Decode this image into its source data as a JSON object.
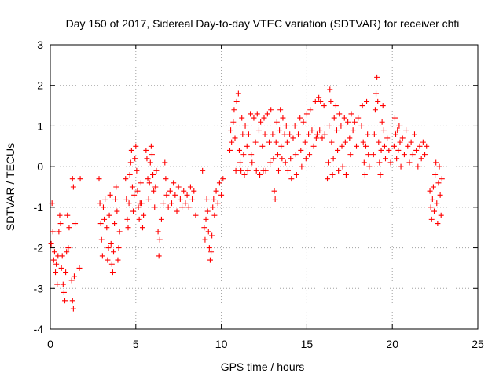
{
  "chart_data": {
    "type": "scatter",
    "title": "Day 150 of 2017, Sidereal Day-to-day VTEC variation (SDTVAR) for receiver chti",
    "xlabel": "GPS time / hours",
    "ylabel": "SDTVAR / TECUs",
    "xlim": [
      0,
      25
    ],
    "ylim": [
      -4,
      3
    ],
    "xticks": [
      "0",
      "5",
      "10",
      "15",
      "20",
      "25"
    ],
    "yticks": [
      "-4",
      "-3",
      "-2",
      "-1",
      "0",
      "1",
      "2",
      "3"
    ],
    "grid": true,
    "marker": "+",
    "color": "#ff0000",
    "series": [
      {
        "name": "SDTVAR",
        "points": [
          [
            0.05,
            -1.9
          ],
          [
            0.1,
            -0.9
          ],
          [
            0.15,
            -1.6
          ],
          [
            0.2,
            -2.3
          ],
          [
            0.25,
            -2.1
          ],
          [
            0.3,
            -2.6
          ],
          [
            0.35,
            -2.4
          ],
          [
            0.4,
            -2.9
          ],
          [
            0.45,
            -2.2
          ],
          [
            0.5,
            -1.6
          ],
          [
            0.55,
            -1.2
          ],
          [
            0.6,
            -1.4
          ],
          [
            0.65,
            -2.5
          ],
          [
            0.7,
            -2.2
          ],
          [
            0.75,
            -2.9
          ],
          [
            0.8,
            -3.1
          ],
          [
            0.85,
            -3.3
          ],
          [
            0.9,
            -2.6
          ],
          [
            0.95,
            -2.1
          ],
          [
            1.0,
            -1.2
          ],
          [
            1.05,
            -2.0
          ],
          [
            1.1,
            -1.5
          ],
          [
            1.25,
            -2.8
          ],
          [
            1.3,
            -3.3
          ],
          [
            1.35,
            -3.5
          ],
          [
            1.4,
            -2.7
          ],
          [
            1.3,
            -0.3
          ],
          [
            1.35,
            -0.5
          ],
          [
            1.45,
            -1.4
          ],
          [
            1.7,
            -2.5
          ],
          [
            1.75,
            -0.3
          ],
          [
            2.85,
            -0.3
          ],
          [
            2.9,
            -0.9
          ],
          [
            2.95,
            -1.4
          ],
          [
            3.0,
            -1.8
          ],
          [
            3.05,
            -2.2
          ],
          [
            3.1,
            -1.0
          ],
          [
            3.15,
            -1.3
          ],
          [
            3.2,
            -0.8
          ],
          [
            3.3,
            -1.5
          ],
          [
            3.35,
            -2.3
          ],
          [
            3.4,
            -2.0
          ],
          [
            3.45,
            -1.2
          ],
          [
            3.5,
            -0.7
          ],
          [
            3.55,
            -1.9
          ],
          [
            3.6,
            -2.4
          ],
          [
            3.65,
            -2.6
          ],
          [
            3.7,
            -2.1
          ],
          [
            3.75,
            -1.4
          ],
          [
            3.8,
            -0.8
          ],
          [
            3.85,
            -0.5
          ],
          [
            3.9,
            -1.1
          ],
          [
            3.95,
            -2.3
          ],
          [
            4.0,
            -2.0
          ],
          [
            4.05,
            -1.6
          ],
          [
            4.4,
            -0.3
          ],
          [
            4.45,
            -0.8
          ],
          [
            4.5,
            -1.3
          ],
          [
            4.55,
            -1.5
          ],
          [
            4.6,
            -0.9
          ],
          [
            4.65,
            -0.2
          ],
          [
            4.7,
            0.1
          ],
          [
            4.75,
            0.4
          ],
          [
            4.8,
            -0.5
          ],
          [
            4.85,
            -1.1
          ],
          [
            4.9,
            -0.7
          ],
          [
            4.95,
            0.2
          ],
          [
            5.0,
            0.5
          ],
          [
            5.05,
            -0.1
          ],
          [
            5.1,
            -0.6
          ],
          [
            5.15,
            -1.0
          ],
          [
            5.2,
            -1.3
          ],
          [
            5.25,
            -0.9
          ],
          [
            5.3,
            -0.4
          ],
          [
            5.35,
            -0.9
          ],
          [
            5.4,
            -1.5
          ],
          [
            5.45,
            -1.2
          ],
          [
            5.6,
            0.4
          ],
          [
            5.65,
            0.2
          ],
          [
            5.7,
            -0.3
          ],
          [
            5.75,
            -0.8
          ],
          [
            5.8,
            -0.4
          ],
          [
            5.85,
            0.1
          ],
          [
            5.9,
            0.5
          ],
          [
            5.95,
            0.3
          ],
          [
            6.0,
            -0.2
          ],
          [
            6.05,
            -0.6
          ],
          [
            6.1,
            -1.0
          ],
          [
            6.15,
            -0.5
          ],
          [
            6.2,
            -0.1
          ],
          [
            6.3,
            -1.6
          ],
          [
            6.35,
            -2.2
          ],
          [
            6.4,
            -1.8
          ],
          [
            6.5,
            -1.3
          ],
          [
            6.6,
            -0.9
          ],
          [
            6.7,
            0.1
          ],
          [
            6.75,
            -0.3
          ],
          [
            6.8,
            -0.7
          ],
          [
            6.9,
            -1.0
          ],
          [
            7.0,
            -0.6
          ],
          [
            7.1,
            -0.9
          ],
          [
            7.2,
            -0.4
          ],
          [
            7.3,
            -0.7
          ],
          [
            7.4,
            -1.1
          ],
          [
            7.5,
            -0.5
          ],
          [
            7.6,
            -0.8
          ],
          [
            7.7,
            -1.0
          ],
          [
            7.8,
            -0.6
          ],
          [
            7.9,
            -0.9
          ],
          [
            8.0,
            -0.7
          ],
          [
            8.1,
            -1.0
          ],
          [
            8.2,
            -0.5
          ],
          [
            8.3,
            -0.8
          ],
          [
            8.4,
            -0.6
          ],
          [
            8.5,
            -1.2
          ],
          [
            8.9,
            -0.1
          ],
          [
            9.0,
            -1.5
          ],
          [
            9.05,
            -1.8
          ],
          [
            9.1,
            -1.3
          ],
          [
            9.15,
            -0.8
          ],
          [
            9.2,
            -1.1
          ],
          [
            9.25,
            -1.6
          ],
          [
            9.3,
            -2.0
          ],
          [
            9.35,
            -2.3
          ],
          [
            9.4,
            -2.1
          ],
          [
            9.45,
            -1.7
          ],
          [
            9.5,
            -1.0
          ],
          [
            9.55,
            -0.8
          ],
          [
            9.6,
            -1.2
          ],
          [
            9.7,
            -0.6
          ],
          [
            9.8,
            -0.9
          ],
          [
            9.9,
            -0.4
          ],
          [
            10.0,
            -0.7
          ],
          [
            10.1,
            -0.3
          ],
          [
            10.5,
            0.4
          ],
          [
            10.55,
            0.9
          ],
          [
            10.6,
            0.6
          ],
          [
            10.7,
            1.1
          ],
          [
            10.75,
            1.4
          ],
          [
            10.8,
            0.7
          ],
          [
            10.85,
            -0.1
          ],
          [
            10.9,
            1.6
          ],
          [
            11.0,
            1.8
          ],
          [
            11.05,
            0.4
          ],
          [
            11.1,
            0.1
          ],
          [
            11.15,
            -0.1
          ],
          [
            11.2,
            1.2
          ],
          [
            11.25,
            0.8
          ],
          [
            11.3,
            0.3
          ],
          [
            11.35,
            -0.2
          ],
          [
            11.4,
            1.0
          ],
          [
            11.5,
            0.5
          ],
          [
            11.55,
            -0.1
          ],
          [
            11.6,
            0.8
          ],
          [
            11.7,
            1.3
          ],
          [
            11.75,
            0.3
          ],
          [
            11.8,
            0.1
          ],
          [
            11.9,
            1.2
          ],
          [
            12.0,
            0.6
          ],
          [
            12.05,
            -0.1
          ],
          [
            12.1,
            1.3
          ],
          [
            12.2,
            0.9
          ],
          [
            12.25,
            -0.2
          ],
          [
            12.3,
            1.1
          ],
          [
            12.4,
            0.5
          ],
          [
            12.45,
            -0.1
          ],
          [
            12.5,
            1.2
          ],
          [
            12.55,
            0.8
          ],
          [
            12.6,
            -0.1
          ],
          [
            12.7,
            1.3
          ],
          [
            12.8,
            0.6
          ],
          [
            12.85,
            0.1
          ],
          [
            12.9,
            1.4
          ],
          [
            13.0,
            0.8
          ],
          [
            13.05,
            0.2
          ],
          [
            13.1,
            -0.6
          ],
          [
            13.15,
            -0.8
          ],
          [
            13.2,
            0.6
          ],
          [
            13.25,
            1.1
          ],
          [
            13.3,
            0.3
          ],
          [
            13.35,
            -0.1
          ],
          [
            13.4,
            0.9
          ],
          [
            13.45,
            1.4
          ],
          [
            13.5,
            0.5
          ],
          [
            13.55,
            0.2
          ],
          [
            13.6,
            1.2
          ],
          [
            13.7,
            0.8
          ],
          [
            13.75,
            0.1
          ],
          [
            13.8,
            1.0
          ],
          [
            13.85,
            0.6
          ],
          [
            13.9,
            -0.1
          ],
          [
            14.0,
            0.8
          ],
          [
            14.05,
            0.2
          ],
          [
            14.1,
            -0.3
          ],
          [
            14.2,
            0.7
          ],
          [
            14.3,
            1.0
          ],
          [
            14.35,
            0.3
          ],
          [
            14.4,
            -0.2
          ],
          [
            14.5,
            0.8
          ],
          [
            14.6,
            1.2
          ],
          [
            14.65,
            0.4
          ],
          [
            14.7,
            0.0
          ],
          [
            14.8,
            1.1
          ],
          [
            14.9,
            0.6
          ],
          [
            14.95,
            0.2
          ],
          [
            15.0,
            1.3
          ],
          [
            15.1,
            0.8
          ],
          [
            15.15,
            0.3
          ],
          [
            15.2,
            1.4
          ],
          [
            15.3,
            0.9
          ],
          [
            15.4,
            0.5
          ],
          [
            15.5,
            1.6
          ],
          [
            15.55,
            0.7
          ],
          [
            15.6,
            0.8
          ],
          [
            15.7,
            1.7
          ],
          [
            15.75,
            0.9
          ],
          [
            15.8,
            1.6
          ],
          [
            15.9,
            0.7
          ],
          [
            16.0,
            1.5
          ],
          [
            16.05,
            0.8
          ],
          [
            16.2,
            -0.3
          ],
          [
            16.25,
            0.1
          ],
          [
            16.3,
            1.0
          ],
          [
            16.35,
            1.9
          ],
          [
            16.4,
            1.6
          ],
          [
            16.45,
            0.6
          ],
          [
            16.5,
            -0.2
          ],
          [
            16.55,
            0.2
          ],
          [
            16.6,
            1.2
          ],
          [
            16.7,
            1.5
          ],
          [
            16.75,
            0.9
          ],
          [
            16.8,
            0.4
          ],
          [
            16.85,
            -0.1
          ],
          [
            16.9,
            1.3
          ],
          [
            17.0,
            1.0
          ],
          [
            17.05,
            0.5
          ],
          [
            17.1,
            0.0
          ],
          [
            17.2,
            1.2
          ],
          [
            17.25,
            0.6
          ],
          [
            17.3,
            -0.2
          ],
          [
            17.4,
            1.1
          ],
          [
            17.5,
            0.7
          ],
          [
            17.55,
            0.3
          ],
          [
            17.6,
            1.3
          ],
          [
            17.7,
            0.9
          ],
          [
            17.8,
            1.1
          ],
          [
            17.9,
            0.5
          ],
          [
            18.0,
            1.2
          ],
          [
            18.2,
            1.0
          ],
          [
            18.25,
            1.5
          ],
          [
            18.3,
            0.6
          ],
          [
            18.35,
            0.1
          ],
          [
            18.4,
            -0.2
          ],
          [
            18.45,
            0.5
          ],
          [
            18.5,
            1.6
          ],
          [
            18.55,
            0.8
          ],
          [
            18.6,
            0.3
          ],
          [
            18.65,
            0.0
          ],
          [
            18.9,
            0.3
          ],
          [
            18.95,
            0.8
          ],
          [
            19.0,
            1.4
          ],
          [
            19.05,
            1.8
          ],
          [
            19.1,
            2.2
          ],
          [
            19.15,
            1.6
          ],
          [
            19.2,
            0.6
          ],
          [
            19.25,
            0.1
          ],
          [
            19.3,
            -0.2
          ],
          [
            19.35,
            0.4
          ],
          [
            19.4,
            1.1
          ],
          [
            19.45,
            1.5
          ],
          [
            19.5,
            0.9
          ],
          [
            19.55,
            0.5
          ],
          [
            19.6,
            0.2
          ],
          [
            19.7,
            0.7
          ],
          [
            19.8,
            0.4
          ],
          [
            19.9,
            0.1
          ],
          [
            20.1,
            0.5
          ],
          [
            20.15,
            1.2
          ],
          [
            20.2,
            0.8
          ],
          [
            20.25,
            0.2
          ],
          [
            20.3,
            0.9
          ],
          [
            20.35,
            0.4
          ],
          [
            20.4,
            1.0
          ],
          [
            20.45,
            0.6
          ],
          [
            20.5,
            0.0
          ],
          [
            20.6,
            0.7
          ],
          [
            20.7,
            0.3
          ],
          [
            20.8,
            0.9
          ],
          [
            20.9,
            0.5
          ],
          [
            21.0,
            0.1
          ],
          [
            21.1,
            0.6
          ],
          [
            21.2,
            0.3
          ],
          [
            21.3,
            0.8
          ],
          [
            21.4,
            0.4
          ],
          [
            21.5,
            0.0
          ],
          [
            21.6,
            0.5
          ],
          [
            21.7,
            0.2
          ],
          [
            21.8,
            0.6
          ],
          [
            21.9,
            0.3
          ],
          [
            22.0,
            0.5
          ],
          [
            22.2,
            -0.6
          ],
          [
            22.25,
            -1.0
          ],
          [
            22.3,
            -1.3
          ],
          [
            22.35,
            -0.8
          ],
          [
            22.4,
            -0.5
          ],
          [
            22.45,
            -1.1
          ],
          [
            22.5,
            -0.2
          ],
          [
            22.55,
            0.1
          ],
          [
            22.6,
            -0.9
          ],
          [
            22.65,
            -1.4
          ],
          [
            22.7,
            -0.4
          ],
          [
            22.75,
            0.0
          ],
          [
            22.8,
            -0.7
          ],
          [
            22.85,
            -1.2
          ],
          [
            22.9,
            -0.3
          ]
        ]
      }
    ]
  }
}
